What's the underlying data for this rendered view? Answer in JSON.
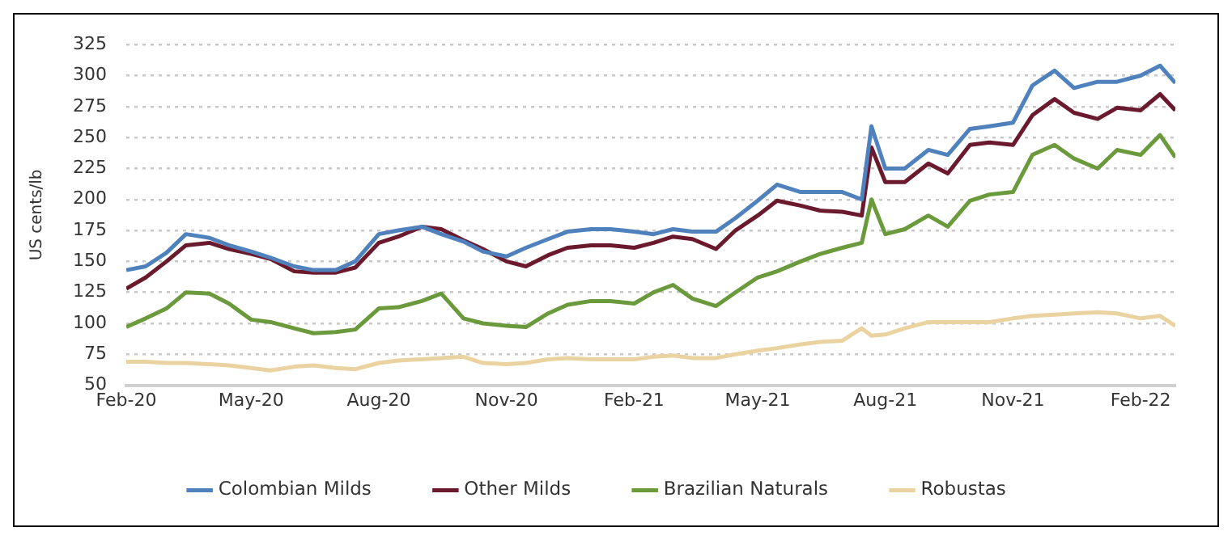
{
  "chart_data": {
    "type": "line",
    "ylabel": "US cents/lb",
    "x": [
      "2020-02-01",
      "2020-02-15",
      "2020-03-01",
      "2020-03-15",
      "2020-04-01",
      "2020-04-15",
      "2020-05-01",
      "2020-05-15",
      "2020-06-01",
      "2020-06-15",
      "2020-07-01",
      "2020-07-15",
      "2020-08-01",
      "2020-08-15",
      "2020-09-01",
      "2020-09-15",
      "2020-10-01",
      "2020-10-15",
      "2020-11-01",
      "2020-11-15",
      "2020-12-01",
      "2020-12-15",
      "2021-01-01",
      "2021-01-15",
      "2021-02-01",
      "2021-02-15",
      "2021-03-01",
      "2021-03-15",
      "2021-04-01",
      "2021-04-15",
      "2021-05-01",
      "2021-05-15",
      "2021-06-01",
      "2021-06-15",
      "2021-07-01",
      "2021-07-15",
      "2021-07-22",
      "2021-08-01",
      "2021-08-15",
      "2021-09-01",
      "2021-09-15",
      "2021-10-01",
      "2021-10-15",
      "2021-11-01",
      "2021-11-15",
      "2021-12-01",
      "2021-12-15",
      "2022-01-01",
      "2022-01-15",
      "2022-02-01",
      "2022-02-15",
      "2022-02-26"
    ],
    "series": [
      {
        "name": "Colombian Milds",
        "color": "#4f81bd",
        "values": [
          143,
          146,
          157,
          172,
          169,
          163,
          158,
          153,
          146,
          143,
          143,
          150,
          172,
          175,
          178,
          172,
          166,
          158,
          154,
          161,
          168,
          174,
          176,
          176,
          174,
          172,
          176,
          174,
          174,
          185,
          199,
          212,
          206,
          206,
          206,
          200,
          259,
          225,
          225,
          240,
          236,
          257,
          259,
          262,
          292,
          304,
          290,
          295,
          295,
          300,
          308,
          294
        ]
      },
      {
        "name": "Other Milds",
        "color": "#6b1a2e",
        "values": [
          128,
          137,
          150,
          163,
          165,
          160,
          156,
          152,
          142,
          141,
          141,
          145,
          165,
          170,
          178,
          176,
          167,
          160,
          150,
          146,
          155,
          161,
          163,
          163,
          161,
          165,
          170,
          168,
          160,
          175,
          187,
          199,
          195,
          191,
          190,
          187,
          242,
          214,
          214,
          229,
          221,
          244,
          246,
          244,
          268,
          281,
          270,
          265,
          274,
          272,
          285,
          272
        ]
      },
      {
        "name": "Brazilian Naturals",
        "color": "#6a9a3c",
        "values": [
          97,
          104,
          112,
          125,
          124,
          116,
          103,
          101,
          96,
          92,
          93,
          95,
          112,
          113,
          118,
          124,
          104,
          100,
          98,
          97,
          108,
          115,
          118,
          118,
          116,
          125,
          131,
          120,
          114,
          125,
          137,
          142,
          150,
          156,
          161,
          165,
          200,
          172,
          176,
          187,
          178,
          199,
          204,
          206,
          236,
          244,
          233,
          225,
          240,
          236,
          252,
          234
        ]
      },
      {
        "name": "Robustas",
        "color": "#ead3a0",
        "values": [
          69,
          69,
          68,
          68,
          67,
          66,
          64,
          62,
          65,
          66,
          64,
          63,
          68,
          70,
          71,
          72,
          73,
          68,
          67,
          68,
          71,
          72,
          71,
          71,
          71,
          73,
          74,
          72,
          72,
          75,
          78,
          80,
          83,
          85,
          86,
          96,
          90,
          91,
          96,
          101,
          101,
          101,
          101,
          104,
          106,
          107,
          108,
          109,
          108,
          104,
          106,
          98
        ]
      }
    ],
    "xlim": [
      "2020-02-01",
      "2022-02-26"
    ],
    "xticks": [
      {
        "value": "2020-02-01",
        "label": "Feb-20"
      },
      {
        "value": "2020-05-01",
        "label": "May-20"
      },
      {
        "value": "2020-08-01",
        "label": "Aug-20"
      },
      {
        "value": "2020-11-01",
        "label": "Nov-20"
      },
      {
        "value": "2021-02-01",
        "label": "Feb-21"
      },
      {
        "value": "2021-05-01",
        "label": "May-21"
      },
      {
        "value": "2021-08-01",
        "label": "Aug-21"
      },
      {
        "value": "2021-11-01",
        "label": "Nov-21"
      },
      {
        "value": "2022-02-01",
        "label": "Feb-22"
      }
    ],
    "ylim": [
      50,
      325
    ],
    "yticks": [
      50,
      75,
      100,
      125,
      150,
      175,
      200,
      225,
      250,
      275,
      300,
      325
    ],
    "grid": "y",
    "legend": "bottom",
    "marker": "none",
    "line_style": "solid"
  }
}
